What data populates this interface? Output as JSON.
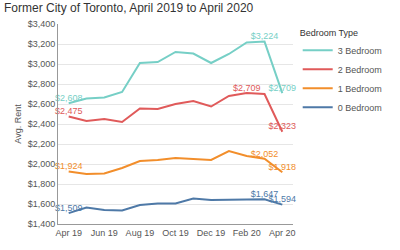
{
  "chart_data": {
    "type": "line",
    "title": "Former City of Toronto, April 2019 to April 2020",
    "y_label": "Avg. Rent",
    "legend_title": "Bedroom Type",
    "legend": "right",
    "grid": true,
    "data_labels": true,
    "categories": [
      "Apr 19",
      null,
      "Jun 19",
      null,
      "Aug 19",
      null,
      "Oct 19",
      null,
      "Dec 19",
      null,
      "Feb 20",
      null,
      "Apr 20"
    ],
    "ylim": [
      1400,
      3400
    ],
    "yticks": [
      {
        "value": 1400,
        "label": "$1,400"
      },
      {
        "value": 1600,
        "label": "$1,600"
      },
      {
        "value": 1800,
        "label": "$1,800"
      },
      {
        "value": 2000,
        "label": "$2,000"
      },
      {
        "value": 2200,
        "label": "$2,200"
      },
      {
        "value": 2400,
        "label": "$2,400"
      },
      {
        "value": 2600,
        "label": "$2,600"
      },
      {
        "value": 2800,
        "label": "$2,800"
      },
      {
        "value": 3000,
        "label": "$3,000"
      },
      {
        "value": 3200,
        "label": "$3,200"
      },
      {
        "value": 3400,
        "label": "$3,400"
      }
    ],
    "series": [
      {
        "name": "3 Bedroom",
        "color": "#76cfc6",
        "values": [
          2608,
          2655,
          2665,
          2720,
          3010,
          3020,
          3120,
          3105,
          3010,
          3100,
          3215,
          3224,
          2709
        ],
        "value_labels": [
          "$2,608",
          null,
          null,
          null,
          null,
          null,
          null,
          null,
          null,
          null,
          null,
          "$3,224",
          "$2,709"
        ]
      },
      {
        "name": "2 Bedroom",
        "color": "#e05a5a",
        "values": [
          2475,
          2430,
          2450,
          2420,
          2555,
          2550,
          2600,
          2630,
          2575,
          2680,
          2709,
          2700,
          2323
        ],
        "value_labels": [
          "$2,475",
          null,
          null,
          null,
          null,
          null,
          null,
          null,
          null,
          null,
          "$2,709",
          null,
          "$2,323"
        ]
      },
      {
        "name": "1 Bedroom",
        "color": "#f28e2b",
        "values": [
          1924,
          1900,
          1905,
          1960,
          2030,
          2040,
          2060,
          2050,
          2040,
          2130,
          2080,
          2052,
          1918
        ],
        "value_labels": [
          "$1,924",
          null,
          null,
          null,
          null,
          null,
          null,
          null,
          null,
          null,
          null,
          "$2,052",
          "$1,918"
        ]
      },
      {
        "name": "0 Bedroom",
        "color": "#4e79a7",
        "values": [
          1509,
          1565,
          1540,
          1535,
          1590,
          1605,
          1605,
          1655,
          1640,
          1640,
          1645,
          1647,
          1594
        ],
        "value_labels": [
          "$1,509",
          null,
          null,
          null,
          null,
          null,
          null,
          null,
          null,
          null,
          null,
          "$1,647",
          "$1,594"
        ]
      }
    ]
  }
}
